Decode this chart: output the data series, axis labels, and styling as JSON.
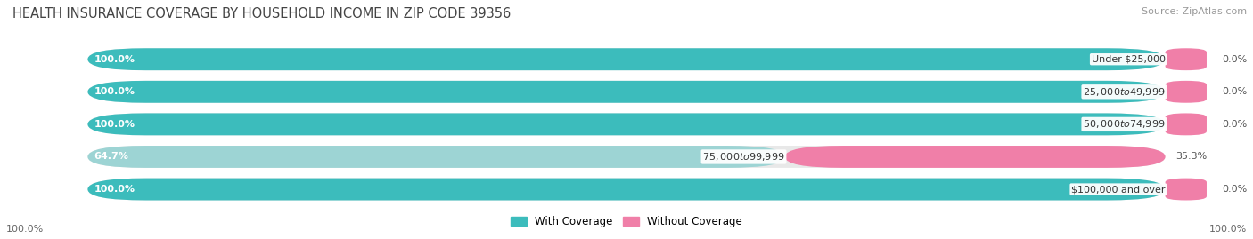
{
  "title": "HEALTH INSURANCE COVERAGE BY HOUSEHOLD INCOME IN ZIP CODE 39356",
  "source": "Source: ZipAtlas.com",
  "categories": [
    "Under $25,000",
    "$25,000 to $49,999",
    "$50,000 to $74,999",
    "$75,000 to $99,999",
    "$100,000 and over"
  ],
  "with_coverage": [
    100.0,
    100.0,
    100.0,
    64.7,
    100.0
  ],
  "without_coverage": [
    0.0,
    0.0,
    0.0,
    35.3,
    0.0
  ],
  "color_with": "#3cbcbc",
  "color_without": "#f07fa8",
  "color_with_light": "#9dd4d4",
  "bar_bg": "#e8e8e8",
  "title_fontsize": 10.5,
  "source_fontsize": 8,
  "label_fontsize": 8,
  "tick_fontsize": 8,
  "legend_fontsize": 8.5
}
